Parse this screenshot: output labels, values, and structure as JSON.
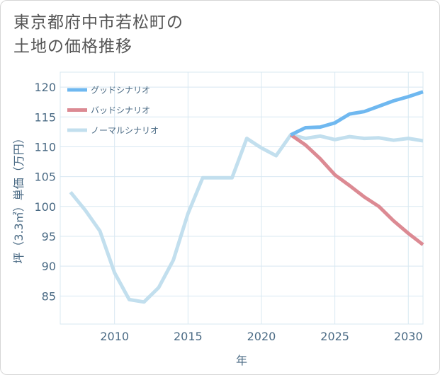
{
  "title": {
    "line1": "東京都府中市若松町の",
    "line2": "土地の価格推移"
  },
  "chart_data": {
    "type": "line",
    "xlabel": "年",
    "ylabel": "坪（3.3㎡）単価（万円）",
    "xlim": [
      2006.3,
      2031
    ],
    "ylim": [
      80.3,
      122.5
    ],
    "x_ticks": [
      2010,
      2015,
      2020,
      2025,
      2030
    ],
    "x_tick_labels": [
      "2010",
      "2015",
      "2020",
      "2025",
      "2030"
    ],
    "y_ticks": [
      85,
      90,
      95,
      100,
      105,
      110,
      115,
      120
    ],
    "y_tick_labels": [
      "85",
      "90",
      "95",
      "100",
      "105",
      "110",
      "115",
      "120"
    ],
    "legend_position": "top-left",
    "series": [
      {
        "name": "グッドシナリオ",
        "color": "#6fb8f0",
        "x": [
          2022,
          2023,
          2024,
          2025,
          2026,
          2027,
          2028,
          2029,
          2030,
          2031
        ],
        "y": [
          112.0,
          113.2,
          113.3,
          114.0,
          115.5,
          115.9,
          116.8,
          117.7,
          118.4,
          119.2
        ]
      },
      {
        "name": "バッドシナリオ",
        "color": "#dc8a93",
        "x": [
          2022,
          2023,
          2024,
          2025,
          2026,
          2027,
          2028,
          2029,
          2030,
          2031
        ],
        "y": [
          112.0,
          110.3,
          108.0,
          105.3,
          103.5,
          101.6,
          100.0,
          97.6,
          95.5,
          93.6
        ]
      },
      {
        "name": "ノーマルシナリオ",
        "color": "#c2dfee",
        "x": [
          2007,
          2008,
          2009,
          2010,
          2011,
          2012,
          2013,
          2014,
          2015,
          2016,
          2017,
          2018,
          2019,
          2020,
          2021,
          2022,
          2023,
          2024,
          2025,
          2026,
          2027,
          2028,
          2029,
          2030,
          2031
        ],
        "y": [
          102.4,
          99.4,
          95.9,
          88.9,
          84.4,
          84.0,
          86.4,
          91.0,
          98.8,
          104.8,
          104.8,
          104.8,
          111.4,
          109.8,
          108.5,
          112.0,
          111.4,
          111.8,
          111.2,
          111.7,
          111.4,
          111.5,
          111.1,
          111.4,
          111.0
        ]
      }
    ]
  }
}
